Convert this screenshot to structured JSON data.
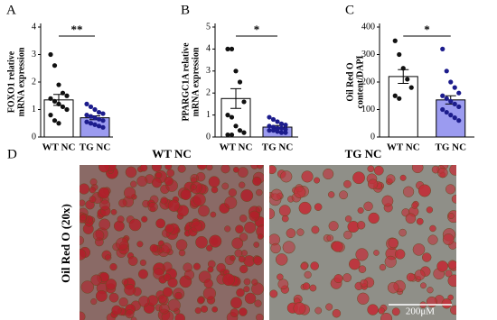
{
  "chart_data": [
    {
      "type": "bar",
      "panel": "A",
      "ylabel": [
        "FOXO1 relative",
        "mRNA expression"
      ],
      "categories": [
        "WT NC",
        "TG NC"
      ],
      "values": [
        1.35,
        0.7
      ],
      "errors": [
        0.2,
        0.07
      ],
      "points": [
        [
          3.0,
          2.6,
          1.9,
          1.6,
          1.5,
          1.4,
          1.3,
          1.2,
          1.1,
          1.0,
          0.8,
          0.6,
          0.5
        ],
        [
          1.2,
          1.1,
          1.0,
          0.9,
          0.85,
          0.8,
          0.75,
          0.7,
          0.65,
          0.6,
          0.55,
          0.5,
          0.45,
          0.4,
          0.35
        ]
      ],
      "colors": [
        "#ffffff",
        "#9b9bf0"
      ],
      "point_colors": [
        "#111111",
        "#1c1c8c"
      ],
      "annotation": "**",
      "ylim": [
        0,
        4
      ],
      "yticks": [
        0,
        1,
        2,
        3,
        4
      ]
    },
    {
      "type": "bar",
      "panel": "B",
      "ylabel": [
        "PPARGC1A relative",
        "mRNA expression"
      ],
      "categories": [
        "WT NC",
        "TG NC"
      ],
      "values": [
        1.75,
        0.45
      ],
      "errors": [
        0.45,
        0.07
      ],
      "points": [
        [
          4.0,
          4.0,
          3.0,
          2.5,
          1.6,
          1.0,
          0.9,
          0.5,
          0.3,
          0.2,
          0.1,
          0.1
        ],
        [
          0.9,
          0.8,
          0.7,
          0.6,
          0.55,
          0.5,
          0.45,
          0.4,
          0.4,
          0.35,
          0.3,
          0.3,
          0.25,
          0.2,
          0.2
        ]
      ],
      "colors": [
        "#ffffff",
        "#9b9bf0"
      ],
      "point_colors": [
        "#111111",
        "#1c1c8c"
      ],
      "annotation": "*",
      "ylim": [
        0,
        5
      ],
      "yticks": [
        0,
        1,
        2,
        3,
        4,
        5
      ]
    },
    {
      "type": "bar",
      "panel": "C",
      "ylabel": [
        "Oil Red O",
        "content/DAPI"
      ],
      "categories": [
        "WT NC",
        "TG NC"
      ],
      "values": [
        220,
        135
      ],
      "errors": [
        25,
        15
      ],
      "points": [
        [
          350,
          300,
          250,
          210,
          180,
          150,
          140
        ],
        [
          320,
          240,
          200,
          180,
          160,
          150,
          140,
          130,
          120,
          110,
          100,
          90,
          80,
          70,
          60
        ]
      ],
      "colors": [
        "#ffffff",
        "#9b9bf0"
      ],
      "point_colors": [
        "#111111",
        "#1c1c8c"
      ],
      "annotation": "*",
      "ylim": [
        0,
        400
      ],
      "yticks": [
        0,
        100,
        200,
        300,
        400
      ]
    }
  ],
  "panel_d": {
    "label": "D",
    "columns": [
      "WT NC",
      "TG NC"
    ],
    "row_label": "Oil Red O (20x)",
    "scale_bar": "200μM"
  }
}
